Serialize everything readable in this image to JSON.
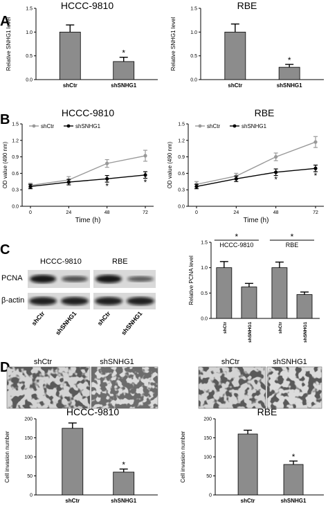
{
  "panel_labels": [
    "A",
    "B",
    "C",
    "D"
  ],
  "chart_data": [
    {
      "id": "A1",
      "type": "bar",
      "title": "HCCC-9810",
      "ylabel": "Relative SNHG1 level",
      "xlabel": "",
      "ylim": [
        0,
        1.5
      ],
      "yticks": [
        "0.0",
        "0.5",
        "1.0",
        "1.5"
      ],
      "ytick_values": [
        0,
        0.5,
        1.0,
        1.5
      ],
      "categories": [
        "shCtr",
        "shSNHG1"
      ],
      "values": [
        1.0,
        0.38
      ],
      "errors": [
        0.15,
        0.09
      ],
      "annotations": [
        "",
        "*"
      ]
    },
    {
      "id": "A2",
      "type": "bar",
      "title": "RBE",
      "ylabel": "Relative SNHG1 level",
      "xlabel": "",
      "ylim": [
        0,
        1.5
      ],
      "yticks": [
        "0.0",
        "0.5",
        "1.0",
        "1.5"
      ],
      "ytick_values": [
        0,
        0.5,
        1.0,
        1.5
      ],
      "categories": [
        "shCtr",
        "shSNHG1"
      ],
      "values": [
        1.0,
        0.26
      ],
      "errors": [
        0.17,
        0.06
      ],
      "annotations": [
        "",
        "*"
      ]
    },
    {
      "id": "B1",
      "type": "line",
      "title": "HCCC-9810",
      "ylabel": "OD value (490 nm)",
      "xlabel": "Time (h)",
      "ylim": [
        0,
        1.5
      ],
      "yticks": [
        "0.0",
        "0.3",
        "0.6",
        "0.9",
        "1.2",
        "1.5"
      ],
      "ytick_values": [
        0,
        0.3,
        0.6,
        0.9,
        1.2,
        1.5
      ],
      "x": [
        0,
        24,
        48,
        72
      ],
      "xticks": [
        "0",
        "24",
        "48",
        "72"
      ],
      "series": [
        {
          "name": "shCtr",
          "color": "#999999",
          "values": [
            0.38,
            0.48,
            0.78,
            0.92
          ],
          "errors": [
            0.04,
            0.06,
            0.07,
            0.1
          ]
        },
        {
          "name": "shSNHG1",
          "color": "#000000",
          "values": [
            0.36,
            0.44,
            0.5,
            0.57
          ],
          "errors": [
            0.04,
            0.05,
            0.06,
            0.06
          ],
          "annotations": [
            "",
            "",
            "*",
            "*"
          ]
        }
      ],
      "legend": "top-left"
    },
    {
      "id": "B2",
      "type": "line",
      "title": "RBE",
      "ylabel": "OD value (490 nm)",
      "xlabel": "Time (h)",
      "ylim": [
        0,
        1.5
      ],
      "yticks": [
        "0.0",
        "0.3",
        "0.6",
        "0.9",
        "1.2",
        "1.5"
      ],
      "ytick_values": [
        0,
        0.3,
        0.6,
        0.9,
        1.2,
        1.5
      ],
      "x": [
        0,
        24,
        48,
        72
      ],
      "xticks": [
        "0",
        "24",
        "48",
        "72"
      ],
      "series": [
        {
          "name": "shCtr",
          "color": "#999999",
          "values": [
            0.4,
            0.55,
            0.9,
            1.17
          ],
          "errors": [
            0.05,
            0.05,
            0.07,
            0.1
          ]
        },
        {
          "name": "shSNHG1",
          "color": "#000000",
          "values": [
            0.36,
            0.5,
            0.62,
            0.69
          ],
          "errors": [
            0.04,
            0.05,
            0.06,
            0.06
          ],
          "annotations": [
            "",
            "",
            "*",
            "*"
          ]
        }
      ],
      "legend": "top-left"
    },
    {
      "id": "C2",
      "type": "bar",
      "title": "",
      "ylabel": "Relative PCNA level",
      "xlabel": "",
      "ylim": [
        0,
        1.5
      ],
      "yticks": [
        "0.0",
        "0.5",
        "1.0",
        "1.5"
      ],
      "ytick_values": [
        0,
        0.5,
        1.0,
        1.5
      ],
      "categories": [
        "shCtr",
        "shSNHG1",
        "shCtr",
        "shSNHG1"
      ],
      "values": [
        1.0,
        0.62,
        1.0,
        0.47
      ],
      "errors": [
        0.12,
        0.07,
        0.11,
        0.05
      ],
      "groups": [
        {
          "label": "HCCC-9810",
          "star": "*"
        },
        {
          "label": "RBE",
          "star": "*"
        }
      ]
    },
    {
      "id": "D1",
      "type": "bar",
      "title": "HCCC-9810",
      "ylabel": "Cell invasion number",
      "xlabel": "",
      "ylim": [
        0,
        200
      ],
      "yticks": [
        "0",
        "50",
        "100",
        "150",
        "200"
      ],
      "ytick_values": [
        0,
        50,
        100,
        150,
        200
      ],
      "categories": [
        "shCtr",
        "shSNHG1"
      ],
      "values": [
        175,
        60
      ],
      "errors": [
        14,
        8
      ],
      "annotations": [
        "",
        "*"
      ]
    },
    {
      "id": "D2",
      "type": "bar",
      "title": "RBE",
      "ylabel": "Cell invasion number",
      "xlabel": "",
      "ylim": [
        0,
        200
      ],
      "yticks": [
        "0",
        "50",
        "100",
        "150",
        "200"
      ],
      "ytick_values": [
        0,
        50,
        100,
        150,
        200
      ],
      "categories": [
        "shCtr",
        "shSNHG1"
      ],
      "values": [
        160,
        80
      ],
      "errors": [
        10,
        9
      ],
      "annotations": [
        "",
        "*"
      ]
    }
  ],
  "blot": {
    "cell_lines": [
      "HCCC-9810",
      "RBE"
    ],
    "rows": [
      "PCNA",
      "β-actin"
    ],
    "lanes": [
      "shCtr",
      "shSNHG1",
      "shCtr",
      "shSNHG1"
    ],
    "pcna_intensity": [
      1.0,
      0.55,
      1.0,
      0.45
    ],
    "actin_intensity": [
      1.0,
      1.0,
      1.0,
      1.0
    ]
  },
  "invasion_images": {
    "labels": [
      "shCtr",
      "shSNHG1",
      "shCtr",
      "shSNHG1"
    ]
  }
}
